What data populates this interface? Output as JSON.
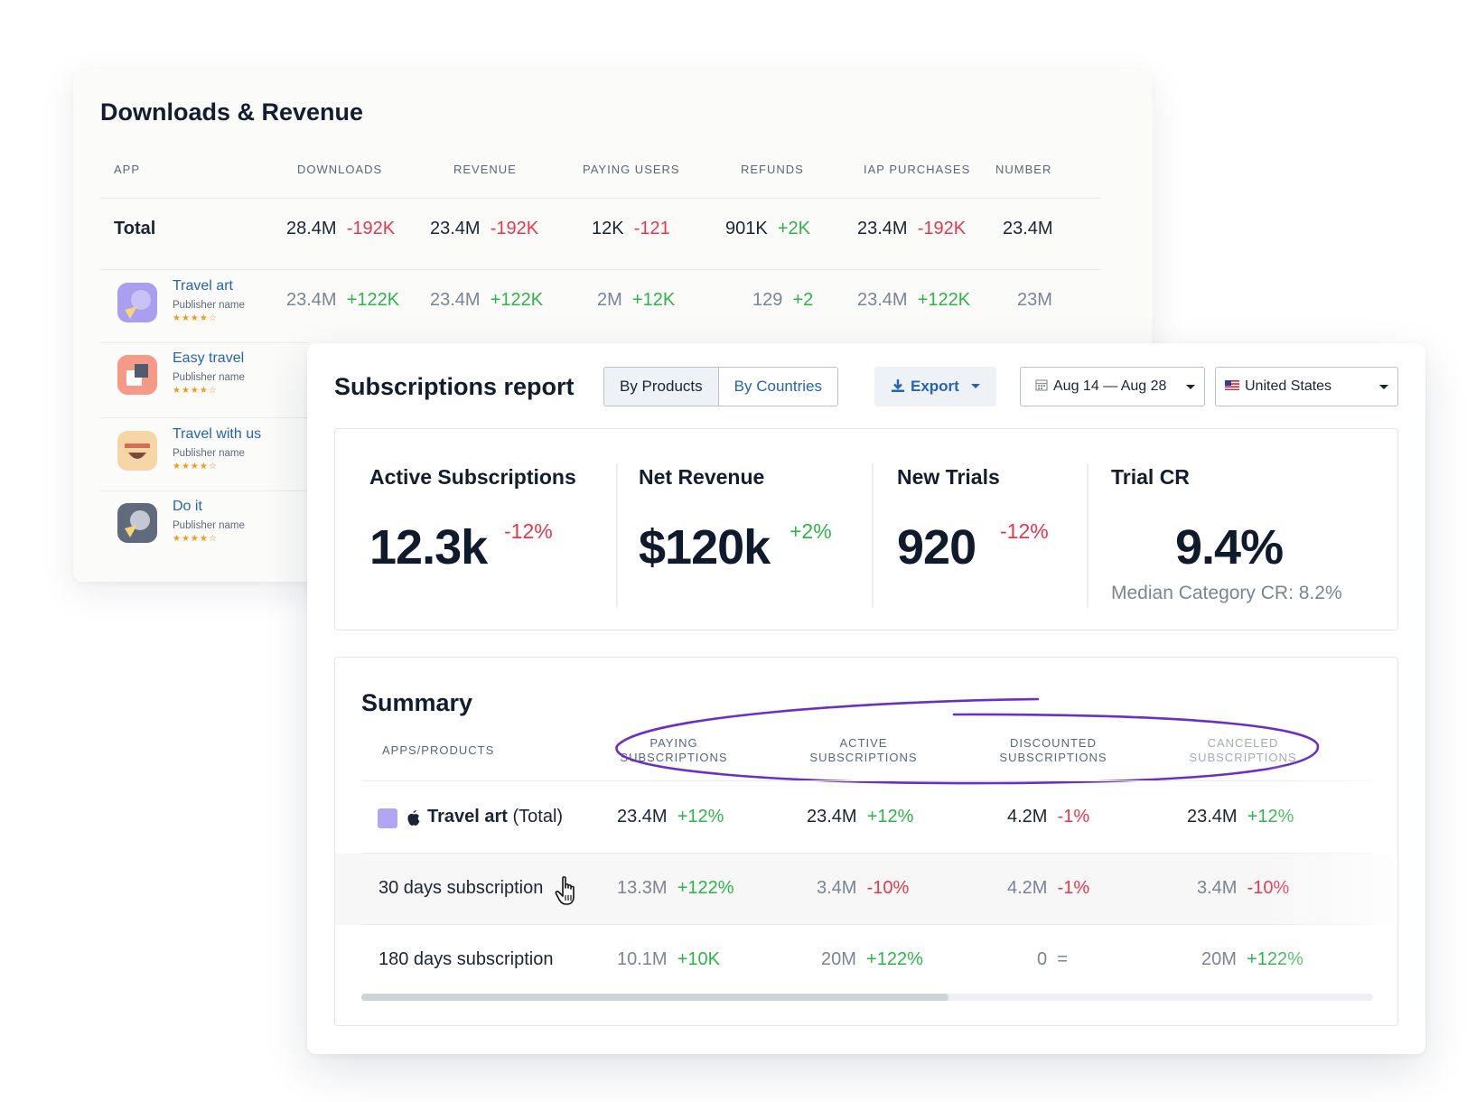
{
  "downloads_revenue": {
    "title": "Downloads & Revenue",
    "columns": [
      "APP",
      "DOWNLOADS",
      "REVENUE",
      "PAYING USERS",
      "REFUNDS",
      "IAP PURCHASES",
      "NUMBER"
    ],
    "total": {
      "label": "Total",
      "cells": [
        {
          "value": "28.4M",
          "change": "-192K"
        },
        {
          "value": "23.4M",
          "change": "-192K"
        },
        {
          "value": "12K",
          "change": "-121"
        },
        {
          "value": "901K",
          "change": "+2K"
        },
        {
          "value": "23.4M",
          "change": "-192K"
        },
        {
          "value": "23.4M",
          "change": ""
        }
      ]
    },
    "apps": [
      {
        "name": "Travel art",
        "publisher": "Publisher name",
        "stars": "★★★★☆",
        "cells": [
          {
            "value": "23.4M",
            "change": "+122K"
          },
          {
            "value": "23.4M",
            "change": "+122K"
          },
          {
            "value": "2M",
            "change": "+12K"
          },
          {
            "value": "129",
            "change": "+2"
          },
          {
            "value": "23.4M",
            "change": "+122K"
          },
          {
            "value": "23M",
            "change": ""
          }
        ]
      },
      {
        "name": "Easy travel",
        "publisher": "Publisher name",
        "stars": "★★★★☆"
      },
      {
        "name": "Travel with us",
        "publisher": "Publisher name",
        "stars": "★★★★☆"
      },
      {
        "name": "Do it",
        "publisher": "Publisher name",
        "stars": "★★★★☆"
      }
    ]
  },
  "subscriptions": {
    "title": "Subscriptions report",
    "toggle": {
      "by_products": "By Products",
      "by_countries": "By Countries"
    },
    "export_label": "Export",
    "date_range": "Aug 14 — Aug 28",
    "country": "United States",
    "metrics": [
      {
        "title": "Active Subscriptions",
        "value": "12.3k",
        "change": "-12%"
      },
      {
        "title": "Net Revenue",
        "value": "$120k",
        "change": "+2%"
      },
      {
        "title": "New Trials",
        "value": "920",
        "change": "-12%"
      },
      {
        "title": "Trial CR",
        "value": "9.4%",
        "sub": "Median Category CR: 8.2%"
      }
    ],
    "summary": {
      "title": "Summary",
      "columns": [
        {
          "line1": "APPS/PRODUCTS",
          "line2": ""
        },
        {
          "line1": "PAYING",
          "line2": "SUBSCRIPTIONS"
        },
        {
          "line1": "ACTIVE",
          "line2": "SUBSCRIPTIONS"
        },
        {
          "line1": "DISCOUNTED",
          "line2": "SUBSCRIPTIONS"
        },
        {
          "line1": "CANCELED",
          "line2": "SUBSCRIPTIONS"
        }
      ],
      "rows": [
        {
          "name_bold": "Travel art",
          "name_rest": " (Total)",
          "cells": [
            {
              "value": "23.4M",
              "change": "+12%"
            },
            {
              "value": "23.4M",
              "change": "+12%"
            },
            {
              "value": "4.2M",
              "change": "-1%"
            },
            {
              "value": "23.4M",
              "change": "+12%"
            }
          ]
        },
        {
          "name": "30 days subscription",
          "cells": [
            {
              "value": "13.3M",
              "change": "+122%"
            },
            {
              "value": "3.4M",
              "change": "-10%"
            },
            {
              "value": "4.2M",
              "change": "-1%"
            },
            {
              "value": "3.4M",
              "change": "-10%"
            }
          ]
        },
        {
          "name": "180 days subscription",
          "cells": [
            {
              "value": "10.1M",
              "change": "+10K"
            },
            {
              "value": "20M",
              "change": "+122%"
            },
            {
              "value": "0",
              "change": "="
            },
            {
              "value": "20M",
              "change": "+122%"
            }
          ]
        }
      ]
    }
  },
  "colors": {
    "positive": "#2fb34a",
    "negative": "#e8374d",
    "link": "#2563b8",
    "annotation": "#6a2fc4"
  }
}
